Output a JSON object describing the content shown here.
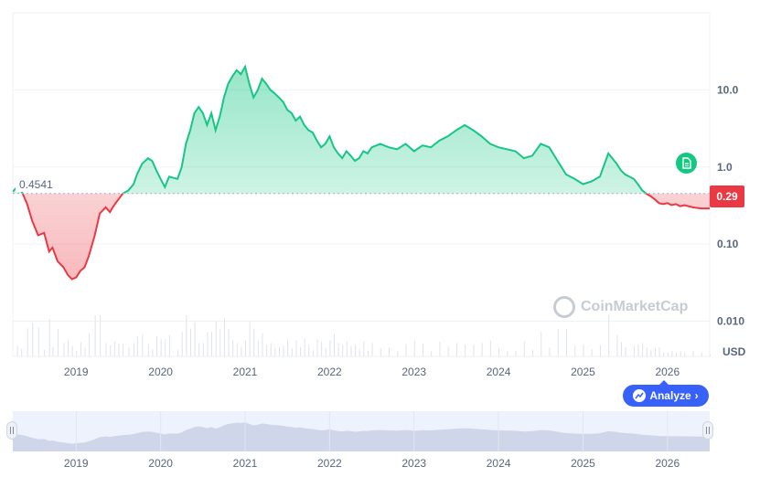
{
  "chart_data": {
    "type": "area",
    "baseline_value": 0.4541,
    "baseline_label": "0.4541",
    "current_price_label": "0.29",
    "y_scale": "log",
    "y_ticks": [
      "10.0",
      "1.0",
      "0.10",
      "0.010"
    ],
    "y_tick_values": [
      10,
      1,
      0.1,
      0.01
    ],
    "ylim": [
      0.0035,
      100
    ],
    "xlim": [
      2018.25,
      2026.5
    ],
    "x_tick_labels": [
      "2019",
      "2020",
      "2021",
      "2022",
      "2023",
      "2024",
      "2025",
      "2026"
    ],
    "x_tick_values": [
      2019,
      2020,
      2021,
      2022,
      2023,
      2024,
      2025,
      2026
    ],
    "unit_label": "USD",
    "grid": true,
    "above_color": "#16c784",
    "below_color": "#ea3943",
    "series": [
      {
        "x": [
          2018.25,
          2018.3,
          2018.35,
          2018.42,
          2018.48,
          2018.55,
          2018.62,
          2018.68,
          2018.72,
          2018.78,
          2018.85,
          2018.9,
          2018.95,
          2019.0,
          2019.05,
          2019.1,
          2019.15,
          2019.22,
          2019.28,
          2019.35,
          2019.4,
          2019.45,
          2019.5,
          2019.55,
          2019.62,
          2019.68,
          2019.72,
          2019.78,
          2019.85,
          2019.9,
          2019.95,
          2020.0,
          2020.05,
          2020.1,
          2020.2,
          2020.25,
          2020.3,
          2020.35,
          2020.4,
          2020.45,
          2020.5,
          2020.55,
          2020.6,
          2020.65,
          2020.7,
          2020.75,
          2020.8,
          2020.85,
          2020.9,
          2020.95,
          2021.0,
          2021.05,
          2021.1,
          2021.15,
          2021.2,
          2021.25,
          2021.3,
          2021.35,
          2021.4,
          2021.45,
          2021.5,
          2021.55,
          2021.6,
          2021.65,
          2021.7,
          2021.75,
          2021.8,
          2021.85,
          2021.9,
          2021.95,
          2022.0,
          2022.05,
          2022.1,
          2022.15,
          2022.2,
          2022.25,
          2022.3,
          2022.35,
          2022.4,
          2022.45,
          2022.5,
          2022.6,
          2022.7,
          2022.8,
          2022.9,
          2023.0,
          2023.1,
          2023.2,
          2023.3,
          2023.4,
          2023.5,
          2023.6,
          2023.7,
          2023.8,
          2023.9,
          2024.0,
          2024.1,
          2024.2,
          2024.3,
          2024.4,
          2024.5,
          2024.6,
          2024.7,
          2024.8,
          2024.9,
          2025.0,
          2025.1,
          2025.2,
          2025.3,
          2025.4,
          2025.45,
          2025.5,
          2025.6,
          2025.65,
          2025.7,
          2025.75,
          2025.8,
          2025.85,
          2025.9,
          2025.95,
          2026.0,
          2026.05,
          2026.1,
          2026.15,
          2026.2,
          2026.3,
          2026.4,
          2026.5
        ],
        "y": [
          0.48,
          0.55,
          0.5,
          0.33,
          0.2,
          0.13,
          0.14,
          0.08,
          0.09,
          0.06,
          0.05,
          0.04,
          0.035,
          0.037,
          0.045,
          0.05,
          0.07,
          0.13,
          0.25,
          0.3,
          0.26,
          0.32,
          0.38,
          0.45,
          0.5,
          0.6,
          0.8,
          1.1,
          1.3,
          1.2,
          0.9,
          0.7,
          0.55,
          0.75,
          0.7,
          1.0,
          2.0,
          3.0,
          5.0,
          6.0,
          5.0,
          3.5,
          5.0,
          3.0,
          4.5,
          8.0,
          12.0,
          15.0,
          18.0,
          16.0,
          20.0,
          12.0,
          8.0,
          10.0,
          14.0,
          12.0,
          10.0,
          9.0,
          8.0,
          7.0,
          5.5,
          5.0,
          4.0,
          4.5,
          3.5,
          3.0,
          2.8,
          2.2,
          1.8,
          2.0,
          2.5,
          1.8,
          1.5,
          1.3,
          1.6,
          1.4,
          1.2,
          1.3,
          1.6,
          1.5,
          1.8,
          2.0,
          1.8,
          1.7,
          2.0,
          1.6,
          1.9,
          1.8,
          2.2,
          2.5,
          3.0,
          3.5,
          3.0,
          2.5,
          2.0,
          1.8,
          1.7,
          1.6,
          1.3,
          1.4,
          2.0,
          1.8,
          1.2,
          0.8,
          0.7,
          0.6,
          0.65,
          0.75,
          1.5,
          1.1,
          0.9,
          0.8,
          0.7,
          0.6,
          0.5,
          0.45,
          0.42,
          0.38,
          0.34,
          0.33,
          0.34,
          0.32,
          0.33,
          0.31,
          0.32,
          0.3,
          0.29,
          0.29
        ]
      }
    ]
  },
  "navigator": {
    "x_tick_labels": [
      "2019",
      "2020",
      "2021",
      "2022",
      "2023",
      "2024",
      "2025",
      "2026"
    ]
  },
  "analyze_button": {
    "label": "Analyze"
  },
  "watermark": {
    "text": "CoinMarketCap"
  },
  "colors": {
    "accent": "#3861fb",
    "up": "#16c784",
    "down": "#ea3943"
  }
}
